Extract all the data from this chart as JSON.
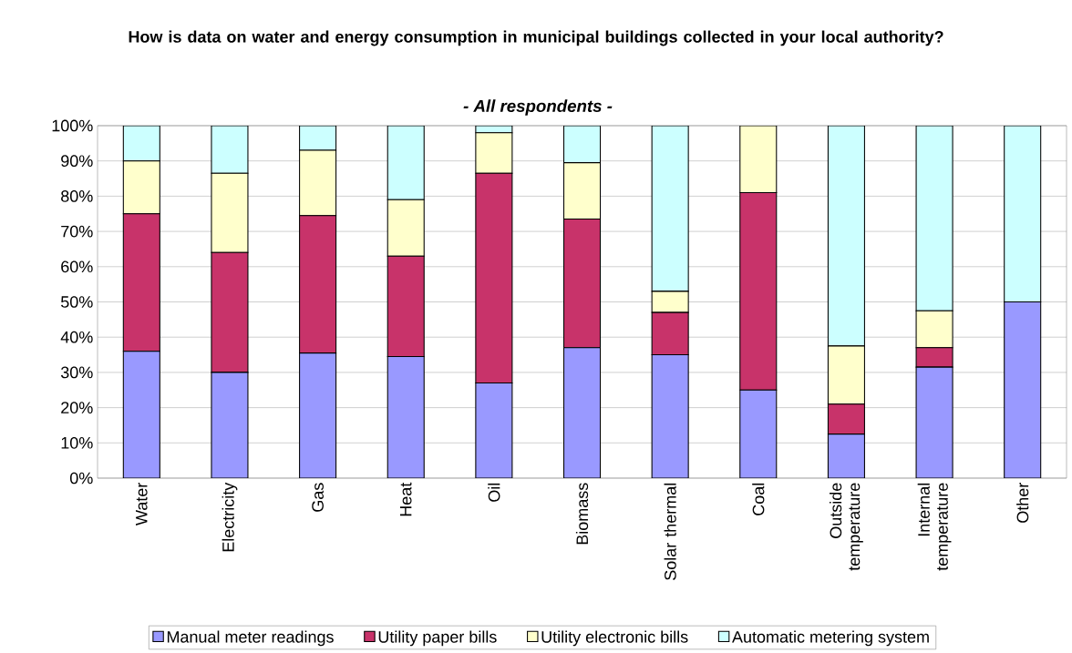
{
  "chart_data": {
    "type": "bar",
    "stacked": true,
    "title": "How is data on water and energy consumption in municipal buildings collected in your local authority?",
    "subtitle": "- All respondents -",
    "categories": [
      "Water",
      "Electricity",
      "Gas",
      "Heat",
      "Oil",
      "Biomass",
      "Solar thermal",
      "Coal",
      "Outside temperature",
      "Internal temperature",
      "Other"
    ],
    "series": [
      {
        "name": "Manual meter readings",
        "color": "#9999ff",
        "values": [
          36,
          30,
          35.5,
          34.5,
          27,
          37,
          35,
          25,
          12.5,
          31.5,
          50
        ]
      },
      {
        "name": "Utility paper bills",
        "color": "#c8336a",
        "values": [
          39,
          34,
          39,
          28.5,
          59.5,
          36.5,
          12,
          56,
          8.5,
          5.5,
          0
        ]
      },
      {
        "name": "Utility electronic bills",
        "color": "#ffffcc",
        "values": [
          15,
          22.5,
          18.5,
          16,
          11.5,
          16,
          6,
          19,
          16.5,
          10.5,
          0
        ]
      },
      {
        "name": "Automatic metering system",
        "color": "#ccffff",
        "values": [
          10,
          13.5,
          7,
          21,
          2,
          10.5,
          47,
          0,
          62.5,
          52.5,
          50
        ]
      }
    ],
    "ylim": [
      0,
      100
    ],
    "yticks": [
      {
        "value": 0,
        "label": "0%"
      },
      {
        "value": 10,
        "label": "10%"
      },
      {
        "value": 20,
        "label": "20%"
      },
      {
        "value": 30,
        "label": "30%"
      },
      {
        "value": 40,
        "label": "40%"
      },
      {
        "value": 50,
        "label": "50%"
      },
      {
        "value": 60,
        "label": "60%"
      },
      {
        "value": 70,
        "label": "70%"
      },
      {
        "value": 80,
        "label": "80%"
      },
      {
        "value": 90,
        "label": "90%"
      },
      {
        "value": 100,
        "label": "100%"
      }
    ],
    "grid": "y",
    "legend": "bottom"
  }
}
